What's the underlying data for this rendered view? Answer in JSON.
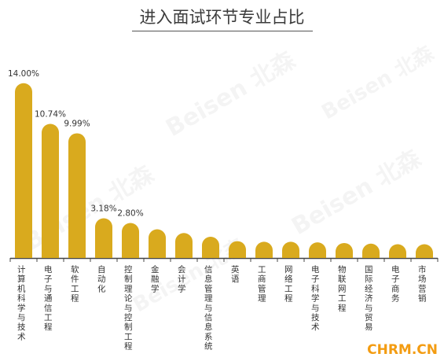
{
  "title": "进入面试环节专业占比",
  "watermark": "Beisen 北森",
  "brand": "CHRM.CN",
  "bar_color": "#d9aa1e",
  "axis_color": "#444444",
  "chart_data": {
    "type": "bar",
    "title": "进入面试环节专业占比",
    "categories": [
      "计算机科学与技术",
      "电子与通信工程",
      "软件工程",
      "自动化",
      "控制理论与控制工程",
      "金融学",
      "会计学",
      "信息管理与信息系统",
      "英语",
      "工商管理",
      "网络工程",
      "电子科学与技术",
      "物联网工程",
      "国际经济与贸易",
      "电子商务",
      "市场营销"
    ],
    "values": [
      14.0,
      10.74,
      9.99,
      3.18,
      2.8,
      2.3,
      2.0,
      1.7,
      1.35,
      1.3,
      1.3,
      1.25,
      1.2,
      1.15,
      1.1,
      1.1
    ],
    "data_labels": [
      "14.00%",
      "10.74%",
      "9.99%",
      "3.18%",
      "2.80%",
      "",
      "",
      "",
      "",
      "",
      "",
      "",
      "",
      "",
      "",
      ""
    ],
    "ylim": [
      0,
      15.5
    ],
    "grid": false,
    "legend": "none"
  }
}
